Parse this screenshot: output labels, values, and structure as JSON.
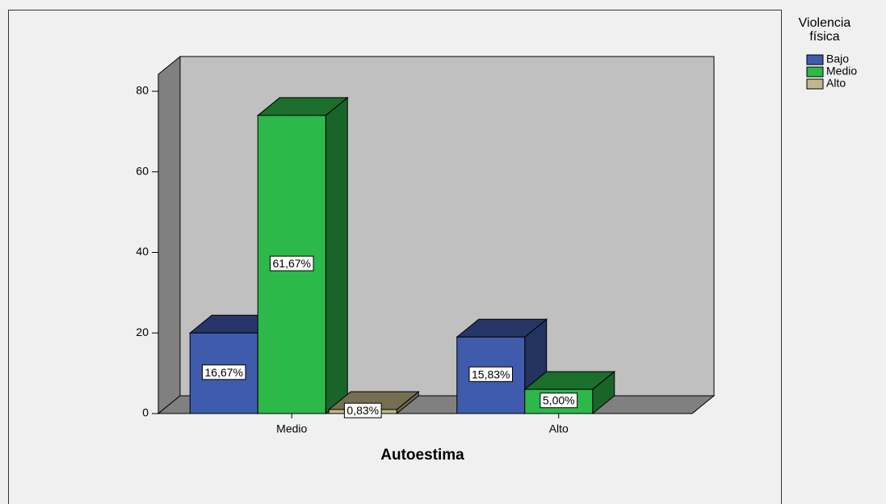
{
  "chart_data": {
    "type": "bar3d",
    "x_label": "Autoestima",
    "legend_title": "Violencia física",
    "categories": [
      "Medio",
      "Alto"
    ],
    "series": [
      {
        "name": "Bajo",
        "color": "#3f5bab",
        "values": [
          20,
          19
        ],
        "data_labels": [
          "16,67%",
          "15,83%"
        ]
      },
      {
        "name": "Medio",
        "color": "#2db84a",
        "values": [
          74,
          6
        ],
        "data_labels": [
          "61,67%",
          "5,00%"
        ]
      },
      {
        "name": "Alto",
        "color": "#c2b78a",
        "values": [
          1,
          null
        ],
        "data_labels": [
          "0,83%",
          null
        ]
      }
    ],
    "ylim": [
      0,
      80
    ],
    "yticks": [
      0,
      20,
      40,
      60,
      80
    ],
    "legend": "right"
  }
}
